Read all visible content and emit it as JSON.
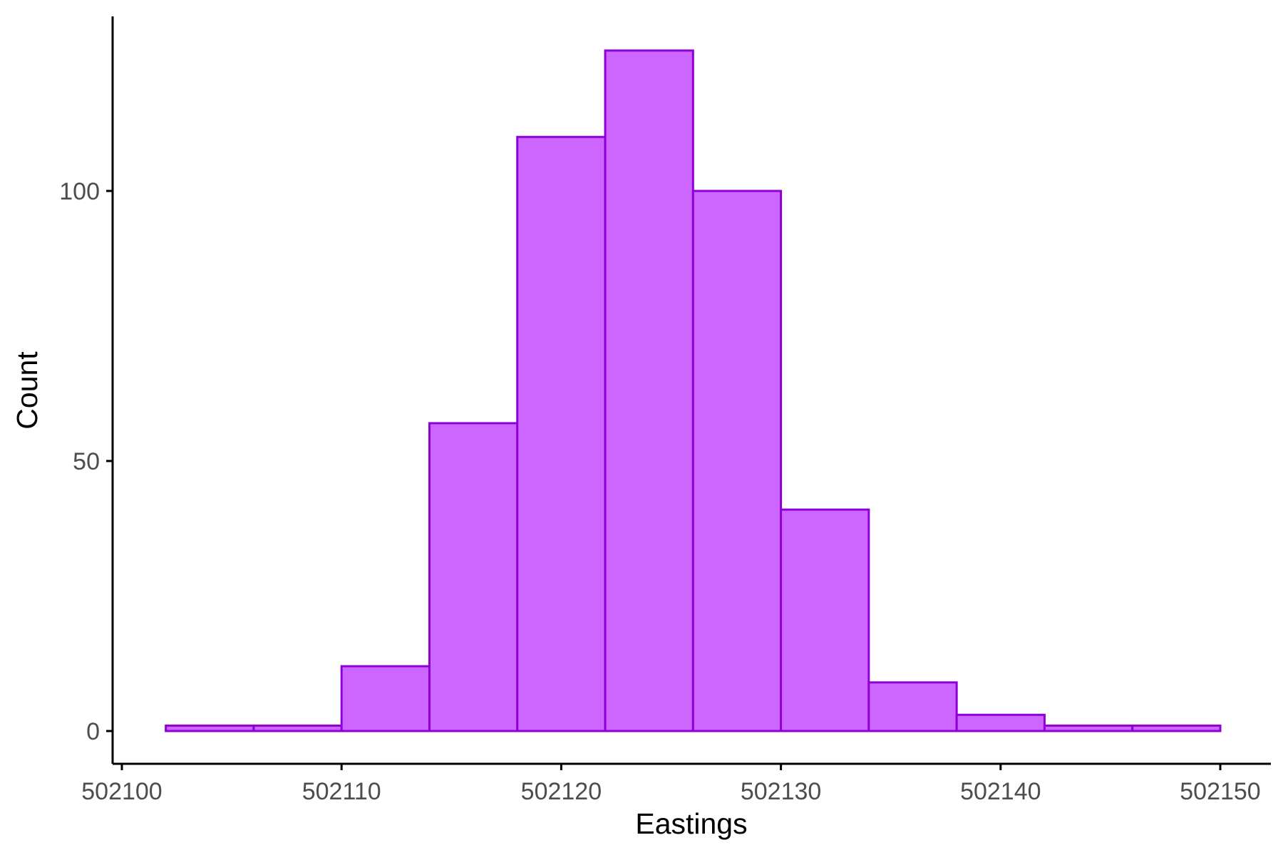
{
  "chart_data": {
    "type": "bar",
    "subtype": "histogram",
    "xlabel": "Eastings",
    "ylabel": "Count",
    "xlim": [
      502100,
      502150
    ],
    "ylim": [
      0,
      125
    ],
    "x_ticks": [
      502100,
      502110,
      502120,
      502130,
      502140,
      502150
    ],
    "x_tick_labels": [
      "502100",
      "502110",
      "502120",
      "502130",
      "502140",
      "502150"
    ],
    "y_ticks": [
      0,
      50,
      100
    ],
    "y_tick_labels": [
      "0",
      "50",
      "100"
    ],
    "bin_width": 4,
    "bins": [
      {
        "start": 502102,
        "end": 502106,
        "count": 1
      },
      {
        "start": 502106,
        "end": 502110,
        "count": 1
      },
      {
        "start": 502110,
        "end": 502114,
        "count": 12
      },
      {
        "start": 502114,
        "end": 502118,
        "count": 57
      },
      {
        "start": 502118,
        "end": 502122,
        "count": 110
      },
      {
        "start": 502122,
        "end": 502126,
        "count": 126
      },
      {
        "start": 502126,
        "end": 502130,
        "count": 100
      },
      {
        "start": 502130,
        "end": 502134,
        "count": 41
      },
      {
        "start": 502134,
        "end": 502138,
        "count": 9
      },
      {
        "start": 502138,
        "end": 502142,
        "count": 3
      },
      {
        "start": 502142,
        "end": 502146,
        "count": 1
      },
      {
        "start": 502146,
        "end": 502150,
        "count": 1
      }
    ],
    "grid": false,
    "legend": "none",
    "colors": {
      "bar_fill": "#cc66ff",
      "bar_stroke": "#8f00d6",
      "axis": "#000000",
      "tick_label": "#4d4d4d"
    }
  }
}
